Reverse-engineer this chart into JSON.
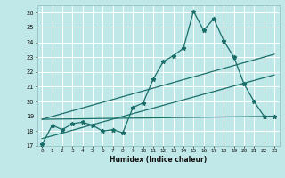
{
  "xlabel": "Humidex (Indice chaleur)",
  "ylabel": "",
  "background_color": "#c0e8e8",
  "grid_color": "#ffffff",
  "line_color": "#1a6e6a",
  "xlim": [
    -0.5,
    23.5
  ],
  "ylim": [
    17,
    26.5
  ],
  "yticks": [
    17,
    18,
    19,
    20,
    21,
    22,
    23,
    24,
    25,
    26
  ],
  "xticks": [
    0,
    1,
    2,
    3,
    4,
    5,
    6,
    7,
    8,
    9,
    10,
    11,
    12,
    13,
    14,
    15,
    16,
    17,
    18,
    19,
    20,
    21,
    22,
    23
  ],
  "series1_x": [
    0,
    1,
    2,
    3,
    4,
    5,
    6,
    7,
    8,
    9,
    10,
    11,
    12,
    13,
    14,
    15,
    16,
    17,
    18,
    19,
    20,
    21,
    22,
    23
  ],
  "series1_y": [
    17.1,
    18.4,
    18.1,
    18.5,
    18.6,
    18.4,
    18.0,
    18.1,
    17.9,
    19.6,
    19.9,
    21.5,
    22.7,
    23.1,
    23.6,
    26.1,
    24.8,
    25.6,
    24.1,
    23.0,
    21.2,
    20.0,
    19.0,
    19.0
  ],
  "series2_x": [
    0,
    23
  ],
  "series2_y": [
    17.5,
    21.8
  ],
  "series3_x": [
    0,
    23
  ],
  "series3_y": [
    18.8,
    23.2
  ],
  "series4_x": [
    0,
    23
  ],
  "series4_y": [
    18.8,
    19.0
  ]
}
